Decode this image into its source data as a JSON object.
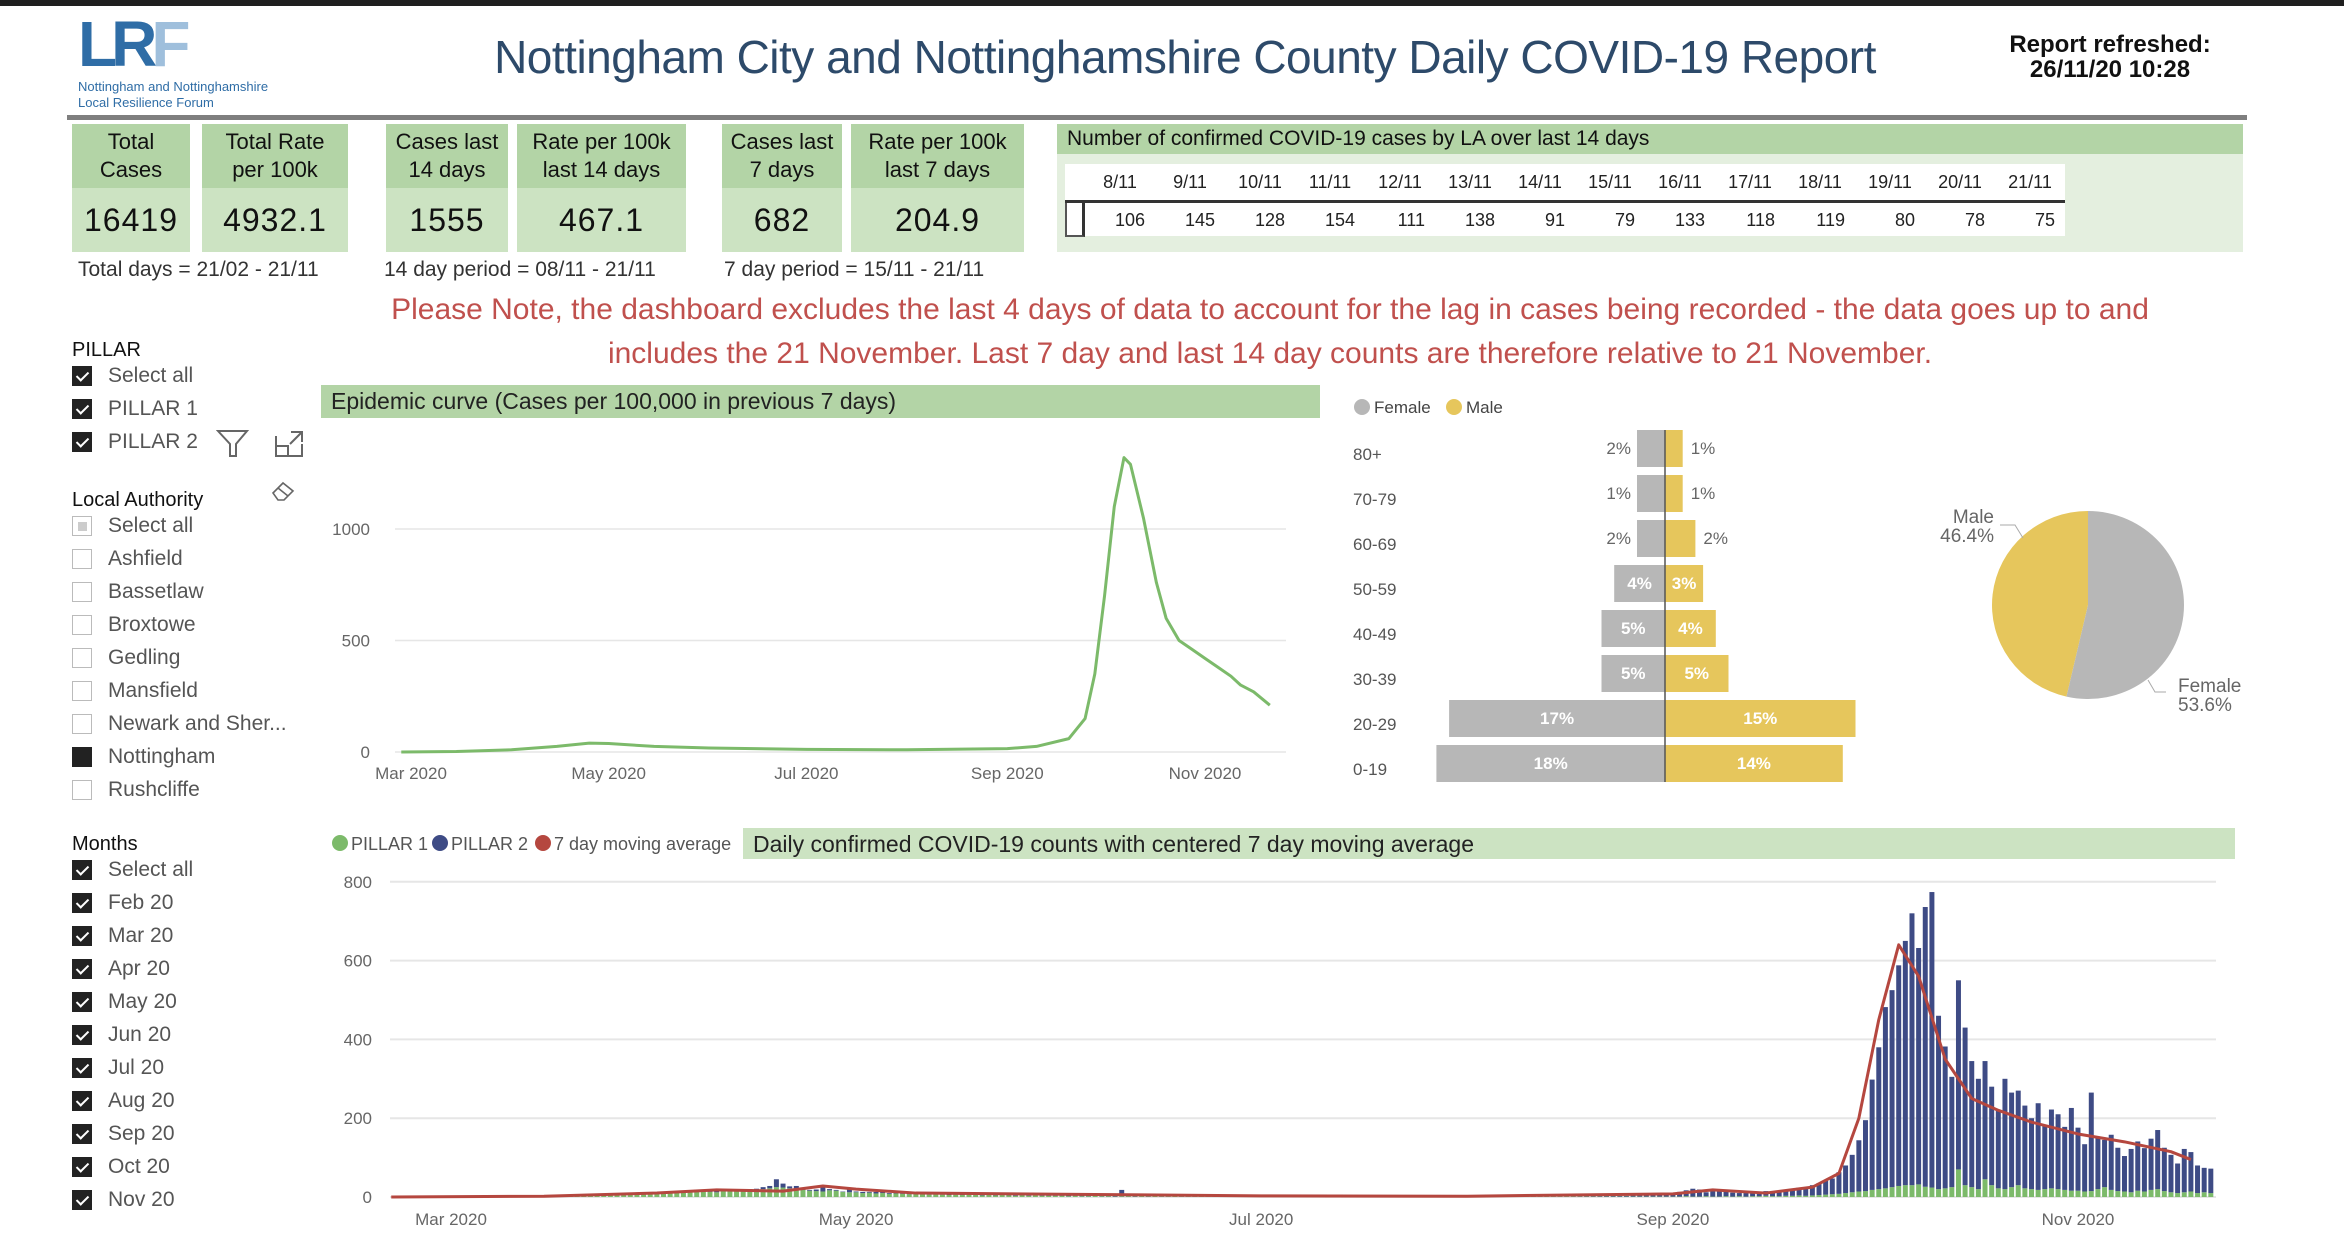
{
  "header": {
    "logo_text": "LRF",
    "logo_sub1": "Nottingham and Nottinghamshire",
    "logo_sub2": "Local Resilience Forum",
    "title": "Nottingham City and Nottinghamshire County Daily COVID-19 Report",
    "refresh_label": "Report refreshed:",
    "refresh_value": "26/11/20 10:28"
  },
  "kpis": [
    {
      "label1": "Total",
      "label2": "Cases",
      "value": "16419"
    },
    {
      "label1": "Total Rate",
      "label2": "per 100k",
      "value": "4932.1"
    },
    {
      "label1": "Cases last",
      "label2": "14 days",
      "value": "1555"
    },
    {
      "label1": "Rate per 100k",
      "label2": "last 14 days",
      "value": "467.1"
    },
    {
      "label1": "Cases last",
      "label2": "7 days",
      "value": "682"
    },
    {
      "label1": "Rate per 100k",
      "label2": "last 7 days",
      "value": "204.9"
    }
  ],
  "kpi_periods": [
    "Total days = 21/02 - 21/11",
    "14 day period = 08/11 - 21/11",
    "7 day period = 15/11 - 21/11"
  ],
  "la_table": {
    "title": "Number of confirmed COVID-19 cases by LA over last 14 days",
    "dates": [
      "8/11",
      "9/11",
      "10/11",
      "11/11",
      "12/11",
      "13/11",
      "14/11",
      "15/11",
      "16/11",
      "17/11",
      "18/11",
      "19/11",
      "20/11",
      "21/11"
    ],
    "values": [
      "106",
      "145",
      "128",
      "154",
      "111",
      "138",
      "91",
      "79",
      "133",
      "118",
      "119",
      "80",
      "78",
      "75"
    ]
  },
  "note": "Please Note, the dashboard excludes the last 4 days of data to account for the lag in cases being recorded - the data goes up to and includes the 21 November. Last 7 day and last 14 day counts are therefore relative to 21 November.",
  "filters": {
    "pillar": {
      "label": "PILLAR",
      "items": [
        {
          "label": "Select all",
          "state": "on"
        },
        {
          "label": "PILLAR 1",
          "state": "on"
        },
        {
          "label": "PILLAR 2",
          "state": "on"
        }
      ]
    },
    "local_authority": {
      "label": "Local Authority",
      "items": [
        {
          "label": "Select all",
          "state": "partial"
        },
        {
          "label": "Ashfield",
          "state": "off"
        },
        {
          "label": "Bassetlaw",
          "state": "off"
        },
        {
          "label": "Broxtowe",
          "state": "off"
        },
        {
          "label": "Gedling",
          "state": "off"
        },
        {
          "label": "Mansfield",
          "state": "off"
        },
        {
          "label": "Newark and Sher...",
          "state": "off"
        },
        {
          "label": "Nottingham",
          "state": "full"
        },
        {
          "label": "Rushcliffe",
          "state": "off"
        }
      ]
    },
    "months": {
      "label": "Months",
      "items": [
        {
          "label": "Select all",
          "state": "on"
        },
        {
          "label": "Feb 20",
          "state": "on"
        },
        {
          "label": "Mar 20",
          "state": "on"
        },
        {
          "label": "Apr 20",
          "state": "on"
        },
        {
          "label": "May 20",
          "state": "on"
        },
        {
          "label": "Jun 20",
          "state": "on"
        },
        {
          "label": "Jul 20",
          "state": "on"
        },
        {
          "label": "Aug 20",
          "state": "on"
        },
        {
          "label": "Sep 20",
          "state": "on"
        },
        {
          "label": "Oct 20",
          "state": "on"
        },
        {
          "label": "Nov 20",
          "state": "on"
        }
      ]
    }
  },
  "icons": {
    "filter": "filter-icon",
    "focus": "focus-mode-icon",
    "eraser": "clear-selections-icon"
  },
  "colors": {
    "header_green": "#b3d4a6",
    "value_green": "#cce3c2",
    "note_red": "#c0504d",
    "female": "#b7b7b7",
    "male": "#e6c65c",
    "pillar1": "#7cba6a",
    "pillar2": "#3e4b85",
    "moving_avg": "#b5473f",
    "epi_line": "#7cba6a"
  },
  "chart_data": [
    {
      "type": "line",
      "title": "Epidemic curve (Cases per 100,000 in previous 7 days)",
      "yticks": [
        0,
        500,
        1000
      ],
      "xticks": [
        "Mar 2020",
        "May 2020",
        "Jul 2020",
        "Sep 2020",
        "Nov 2020"
      ],
      "ylim": [
        0,
        1350
      ],
      "grid": true,
      "points": [
        [
          "2020-02-27",
          0
        ],
        [
          "2020-03-15",
          2
        ],
        [
          "2020-04-01",
          10
        ],
        [
          "2020-04-15",
          25
        ],
        [
          "2020-04-25",
          40
        ],
        [
          "2020-05-01",
          38
        ],
        [
          "2020-05-15",
          25
        ],
        [
          "2020-06-01",
          18
        ],
        [
          "2020-07-01",
          12
        ],
        [
          "2020-08-01",
          10
        ],
        [
          "2020-09-01",
          15
        ],
        [
          "2020-09-10",
          25
        ],
        [
          "2020-09-20",
          60
        ],
        [
          "2020-09-25",
          150
        ],
        [
          "2020-09-28",
          350
        ],
        [
          "2020-10-01",
          700
        ],
        [
          "2020-10-04",
          1100
        ],
        [
          "2020-10-07",
          1320
        ],
        [
          "2020-10-09",
          1290
        ],
        [
          "2020-10-13",
          1050
        ],
        [
          "2020-10-17",
          760
        ],
        [
          "2020-10-20",
          600
        ],
        [
          "2020-10-24",
          500
        ],
        [
          "2020-10-28",
          460
        ],
        [
          "2020-11-01",
          420
        ],
        [
          "2020-11-05",
          380
        ],
        [
          "2020-11-09",
          340
        ],
        [
          "2020-11-12",
          300
        ],
        [
          "2020-11-16",
          270
        ],
        [
          "2020-11-21",
          210
        ]
      ]
    },
    {
      "type": "bar",
      "orientation": "horizontal",
      "subtype": "population-pyramid",
      "legend": [
        "Female",
        "Male"
      ],
      "legend_position": "top-left",
      "categories": [
        "80+",
        "70-79",
        "60-69",
        "50-59",
        "40-49",
        "30-39",
        "20-29",
        "0-19"
      ],
      "series": [
        {
          "name": "Female",
          "values": [
            2,
            1,
            2,
            4,
            5,
            5,
            17,
            18
          ]
        },
        {
          "name": "Male",
          "values": [
            1,
            1,
            2,
            3,
            4,
            5,
            15,
            14
          ]
        }
      ]
    },
    {
      "type": "pie",
      "slices": [
        {
          "label": "Male",
          "value": 46.4,
          "text": "46.4%"
        },
        {
          "label": "Female",
          "value": 53.6,
          "text": "53.6%"
        }
      ]
    },
    {
      "type": "bar",
      "subtype": "stacked-bar-with-line",
      "title": "Daily confirmed COVID-19 counts with centered 7 day moving average",
      "legend": [
        "PILLAR 1",
        "PILLAR 2",
        "7 day moving average"
      ],
      "legend_position": "top-left",
      "yticks": [
        0,
        200,
        400,
        600,
        800
      ],
      "ylim": [
        0,
        800
      ],
      "xticks": [
        "Mar 2020",
        "May 2020",
        "Jul 2020",
        "Sep 2020",
        "Nov 2020"
      ],
      "grid": true,
      "daily_by_month": [
        {
          "month": "2020-02",
          "first_day": 21,
          "pillar1": [
            0,
            0,
            0,
            0,
            0,
            0,
            0,
            0,
            0
          ],
          "pillar2": [
            0,
            0,
            0,
            0,
            0,
            0,
            0,
            0,
            0
          ]
        },
        {
          "month": "2020-03",
          "first_day": 1,
          "pillar1": [
            0,
            0,
            0,
            0,
            0,
            1,
            0,
            1,
            1,
            1,
            2,
            1,
            2,
            3,
            2,
            3,
            4,
            3,
            5,
            4,
            6,
            5,
            7,
            6,
            8,
            7,
            9,
            8,
            10,
            9,
            11
          ],
          "pillar2": [
            0,
            0,
            0,
            0,
            0,
            0,
            0,
            0,
            0,
            0,
            0,
            0,
            0,
            0,
            0,
            0,
            0,
            0,
            0,
            0,
            0,
            0,
            0,
            0,
            0,
            0,
            0,
            0,
            0,
            0,
            0
          ]
        },
        {
          "month": "2020-04",
          "first_day": 1,
          "pillar1": [
            12,
            11,
            13,
            12,
            14,
            13,
            15,
            14,
            13,
            12,
            14,
            16,
            15,
            14,
            16,
            18,
            20,
            22,
            25,
            24,
            22,
            20,
            18,
            16,
            15,
            14,
            17,
            16,
            13,
            12
          ],
          "pillar2": [
            0,
            0,
            1,
            0,
            1,
            1,
            2,
            1,
            2,
            3,
            2,
            1,
            2,
            3,
            4,
            3,
            5,
            6,
            20,
            10,
            5,
            8,
            3,
            2,
            4,
            12,
            3,
            2,
            1,
            10
          ]
        },
        {
          "month": "2020-05",
          "first_day": 1,
          "pillar1": [
            12,
            10,
            11,
            9,
            10,
            8,
            9,
            8,
            7,
            8,
            7,
            6,
            7,
            6,
            5,
            6,
            5,
            6,
            5,
            4,
            5,
            4,
            5,
            4,
            3,
            4,
            3,
            4,
            3,
            3,
            3
          ],
          "pillar2": [
            2,
            3,
            2,
            4,
            3,
            2,
            3,
            3,
            2,
            3,
            2,
            3,
            3,
            2,
            3,
            2,
            3,
            2,
            2,
            3,
            2,
            3,
            2,
            2,
            3,
            2,
            2,
            3,
            2,
            2,
            2
          ]
        },
        {
          "month": "2020-06",
          "first_day": 1,
          "pillar1": [
            3,
            2,
            3,
            2,
            2,
            3,
            2,
            2,
            1,
            2,
            2,
            1,
            2,
            1,
            2,
            1,
            1,
            2,
            1,
            1,
            1,
            2,
            1,
            1,
            1,
            1,
            1,
            1,
            1,
            1
          ],
          "pillar2": [
            4,
            5,
            4,
            5,
            4,
            4,
            5,
            4,
            3,
            16,
            4,
            3,
            4,
            3,
            4,
            3,
            3,
            4,
            3,
            3,
            3,
            4,
            3,
            3,
            3,
            3,
            3,
            2,
            3,
            3
          ]
        },
        {
          "month": "2020-07",
          "first_day": 1,
          "pillar1": [
            1,
            1,
            1,
            1,
            1,
            1,
            1,
            1,
            1,
            1,
            1,
            1,
            1,
            1,
            1,
            1,
            1,
            1,
            1,
            1,
            1,
            1,
            1,
            1,
            1,
            1,
            1,
            1,
            1,
            1,
            1
          ],
          "pillar2": [
            2,
            3,
            2,
            2,
            3,
            2,
            2,
            3,
            2,
            2,
            3,
            2,
            2,
            2,
            3,
            2,
            2,
            2,
            2,
            3,
            2,
            2,
            2,
            2,
            2,
            3,
            2,
            2,
            2,
            2,
            2
          ]
        },
        {
          "month": "2020-08",
          "first_day": 1,
          "pillar1": [
            1,
            1,
            1,
            1,
            1,
            1,
            1,
            1,
            1,
            1,
            1,
            1,
            1,
            1,
            1,
            1,
            1,
            1,
            1,
            1,
            1,
            1,
            1,
            1,
            1,
            1,
            1,
            1,
            1,
            1,
            1
          ],
          "pillar2": [
            2,
            2,
            3,
            2,
            2,
            2,
            3,
            2,
            2,
            2,
            3,
            2,
            2,
            2,
            2,
            3,
            2,
            2,
            2,
            3,
            2,
            2,
            3,
            2,
            2,
            3,
            4,
            3,
            4,
            3,
            4
          ]
        },
        {
          "month": "2020-09",
          "first_day": 1,
          "pillar1": [
            1,
            1,
            2,
            1,
            1,
            2,
            1,
            1,
            2,
            1,
            2,
            1,
            2,
            2,
            3,
            2,
            2,
            3,
            3,
            4,
            3,
            4,
            5,
            6,
            7,
            8,
            10,
            12,
            14,
            15
          ],
          "pillar2": [
            8,
            12,
            15,
            20,
            18,
            10,
            14,
            16,
            12,
            10,
            8,
            9,
            10,
            11,
            12,
            13,
            14,
            16,
            18,
            20,
            22,
            26,
            30,
            35,
            40,
            55,
            70,
            95,
            130,
            180
          ]
        },
        {
          "month": "2020-10",
          "first_day": 1,
          "pillar1": [
            18,
            20,
            22,
            25,
            28,
            30,
            30,
            32,
            26,
            24,
            20,
            22,
            25,
            70,
            30,
            25,
            20,
            45,
            30,
            22,
            20,
            25,
            30,
            22,
            20,
            18,
            20,
            22,
            20,
            18,
            16
          ],
          "pillar2": [
            280,
            360,
            460,
            500,
            560,
            620,
            690,
            600,
            710,
            750,
            440,
            360,
            280,
            480,
            400,
            320,
            280,
            300,
            250,
            200,
            280,
            240,
            240,
            210,
            180,
            220,
            160,
            200,
            190,
            160,
            210
          ]
        },
        {
          "month": "2020-11",
          "first_day": 1,
          "pillar1": [
            16,
            14,
            15,
            20,
            25,
            18,
            15,
            14,
            12,
            16,
            14,
            18,
            20,
            15,
            12,
            10,
            12,
            14,
            10,
            12,
            10
          ],
          "pillar2": [
            160,
            120,
            250,
            130,
            120,
            140,
            110,
            90,
            110,
            125,
            110,
            130,
            150,
            110,
            95,
            75,
            110,
            100,
            70,
            62,
            62
          ]
        }
      ],
      "moving_average": [
        [
          "2020-02-21",
          0
        ],
        [
          "2020-03-15",
          2
        ],
        [
          "2020-04-01",
          10
        ],
        [
          "2020-04-10",
          18
        ],
        [
          "2020-04-20",
          15
        ],
        [
          "2020-04-26",
          28
        ],
        [
          "2020-05-01",
          20
        ],
        [
          "2020-05-10",
          10
        ],
        [
          "2020-06-01",
          7
        ],
        [
          "2020-07-01",
          3
        ],
        [
          "2020-08-01",
          2
        ],
        [
          "2020-09-01",
          8
        ],
        [
          "2020-09-07",
          18
        ],
        [
          "2020-09-15",
          10
        ],
        [
          "2020-09-22",
          25
        ],
        [
          "2020-09-26",
          60
        ],
        [
          "2020-09-29",
          200
        ],
        [
          "2020-10-02",
          450
        ],
        [
          "2020-10-05",
          640
        ],
        [
          "2020-10-08",
          560
        ],
        [
          "2020-10-12",
          350
        ],
        [
          "2020-10-16",
          250
        ],
        [
          "2020-10-20",
          220
        ],
        [
          "2020-10-25",
          190
        ],
        [
          "2020-11-01",
          160
        ],
        [
          "2020-11-08",
          140
        ],
        [
          "2020-11-15",
          115
        ],
        [
          "2020-11-18",
          95
        ]
      ]
    }
  ]
}
